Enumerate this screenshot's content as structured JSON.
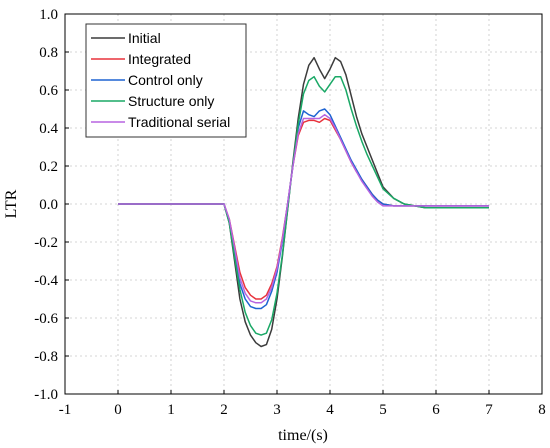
{
  "chart_data": {
    "type": "line",
    "title": "",
    "xlabel": "time/(s)",
    "ylabel": "LTR",
    "xlim": [
      -1,
      8
    ],
    "ylim": [
      -1.0,
      1.0
    ],
    "xticks": [
      "-1",
      "0",
      "1",
      "2",
      "3",
      "4",
      "5",
      "6",
      "7",
      "8"
    ],
    "yticks": [
      "1.0",
      "0.8",
      "0.6",
      "0.4",
      "0.2",
      "0.0",
      "-0.2",
      "-0.4",
      "-0.6",
      "-0.8",
      "-1.0"
    ],
    "grid": true,
    "legend_position": "top-left",
    "series": [
      {
        "name": "Initial",
        "color": "#3c3c3c",
        "x": [
          0,
          2.0,
          2.1,
          2.2,
          2.3,
          2.4,
          2.5,
          2.6,
          2.7,
          2.8,
          2.9,
          3.0,
          3.1,
          3.2,
          3.3,
          3.4,
          3.5,
          3.6,
          3.7,
          3.8,
          3.9,
          4.0,
          4.1,
          4.2,
          4.3,
          4.4,
          4.5,
          4.6,
          4.7,
          4.8,
          4.9,
          5.0,
          5.2,
          5.4,
          5.6,
          5.8,
          6.0,
          6.5,
          7.0
        ],
        "y": [
          0.0,
          0.0,
          -0.1,
          -0.3,
          -0.5,
          -0.62,
          -0.69,
          -0.73,
          -0.75,
          -0.74,
          -0.66,
          -0.5,
          -0.28,
          -0.03,
          0.22,
          0.45,
          0.63,
          0.73,
          0.77,
          0.71,
          0.66,
          0.71,
          0.77,
          0.75,
          0.68,
          0.57,
          0.46,
          0.37,
          0.3,
          0.23,
          0.16,
          0.09,
          0.03,
          0.0,
          -0.01,
          -0.02,
          -0.02,
          -0.02,
          -0.02
        ]
      },
      {
        "name": "Integrated",
        "color": "#e8323c",
        "x": [
          0,
          2.0,
          2.1,
          2.2,
          2.3,
          2.4,
          2.5,
          2.6,
          2.7,
          2.8,
          2.9,
          3.0,
          3.1,
          3.2,
          3.3,
          3.4,
          3.5,
          3.6,
          3.7,
          3.8,
          3.9,
          4.0,
          4.1,
          4.2,
          4.3,
          4.4,
          4.5,
          4.6,
          4.7,
          4.8,
          4.9,
          5.0,
          5.2,
          5.4,
          5.6,
          5.8,
          6.0,
          6.5,
          7.0
        ],
        "y": [
          0.0,
          0.0,
          -0.08,
          -0.22,
          -0.36,
          -0.44,
          -0.48,
          -0.5,
          -0.5,
          -0.48,
          -0.42,
          -0.33,
          -0.18,
          0.0,
          0.2,
          0.36,
          0.43,
          0.44,
          0.44,
          0.43,
          0.45,
          0.44,
          0.39,
          0.34,
          0.28,
          0.22,
          0.17,
          0.13,
          0.09,
          0.05,
          0.02,
          0.0,
          -0.01,
          -0.01,
          -0.01,
          -0.01,
          -0.01,
          -0.01,
          -0.01
        ]
      },
      {
        "name": "Control only",
        "color": "#1e64d2",
        "x": [
          0,
          2.0,
          2.1,
          2.2,
          2.3,
          2.4,
          2.5,
          2.6,
          2.7,
          2.8,
          2.9,
          3.0,
          3.1,
          3.2,
          3.3,
          3.4,
          3.5,
          3.6,
          3.7,
          3.8,
          3.9,
          4.0,
          4.1,
          4.2,
          4.3,
          4.4,
          4.5,
          4.6,
          4.7,
          4.8,
          4.9,
          5.0,
          5.2,
          5.4,
          5.6,
          5.8,
          6.0,
          6.5,
          7.0
        ],
        "y": [
          0.0,
          0.0,
          -0.09,
          -0.25,
          -0.42,
          -0.5,
          -0.54,
          -0.55,
          -0.55,
          -0.53,
          -0.46,
          -0.36,
          -0.2,
          0.0,
          0.2,
          0.4,
          0.49,
          0.47,
          0.46,
          0.49,
          0.5,
          0.47,
          0.41,
          0.35,
          0.29,
          0.23,
          0.18,
          0.13,
          0.09,
          0.05,
          0.02,
          0.0,
          -0.01,
          -0.01,
          -0.01,
          -0.01,
          -0.01,
          -0.01,
          -0.01
        ]
      },
      {
        "name": "Structure only",
        "color": "#1aa866",
        "x": [
          0,
          2.0,
          2.1,
          2.2,
          2.3,
          2.4,
          2.5,
          2.6,
          2.7,
          2.8,
          2.9,
          3.0,
          3.1,
          3.2,
          3.3,
          3.4,
          3.5,
          3.6,
          3.7,
          3.8,
          3.9,
          4.0,
          4.1,
          4.2,
          4.3,
          4.4,
          4.5,
          4.6,
          4.7,
          4.8,
          4.9,
          5.0,
          5.2,
          5.4,
          5.6,
          5.8,
          6.0,
          6.5,
          7.0
        ],
        "y": [
          0.0,
          0.0,
          -0.1,
          -0.28,
          -0.45,
          -0.57,
          -0.64,
          -0.68,
          -0.69,
          -0.68,
          -0.61,
          -0.47,
          -0.27,
          -0.03,
          0.21,
          0.42,
          0.58,
          0.65,
          0.67,
          0.62,
          0.59,
          0.63,
          0.67,
          0.67,
          0.6,
          0.5,
          0.41,
          0.33,
          0.26,
          0.2,
          0.14,
          0.08,
          0.03,
          0.0,
          -0.01,
          -0.02,
          -0.02,
          -0.02,
          -0.02
        ]
      },
      {
        "name": "Traditional serial",
        "color": "#b764e0",
        "x": [
          0,
          2.0,
          2.1,
          2.2,
          2.3,
          2.4,
          2.5,
          2.6,
          2.7,
          2.8,
          2.9,
          3.0,
          3.1,
          3.2,
          3.3,
          3.4,
          3.5,
          3.6,
          3.7,
          3.8,
          3.9,
          4.0,
          4.1,
          4.2,
          4.3,
          4.4,
          4.5,
          4.6,
          4.7,
          4.8,
          4.9,
          5.0,
          5.2,
          5.4,
          5.6,
          5.8,
          6.0,
          6.5,
          7.0
        ],
        "y": [
          0.0,
          0.0,
          -0.08,
          -0.23,
          -0.39,
          -0.47,
          -0.51,
          -0.52,
          -0.52,
          -0.5,
          -0.44,
          -0.34,
          -0.19,
          0.0,
          0.2,
          0.37,
          0.45,
          0.45,
          0.45,
          0.45,
          0.47,
          0.45,
          0.4,
          0.34,
          0.28,
          0.22,
          0.17,
          0.12,
          0.08,
          0.04,
          0.01,
          -0.01,
          -0.01,
          -0.01,
          -0.01,
          -0.01,
          -0.01,
          -0.01,
          -0.01
        ]
      }
    ]
  }
}
